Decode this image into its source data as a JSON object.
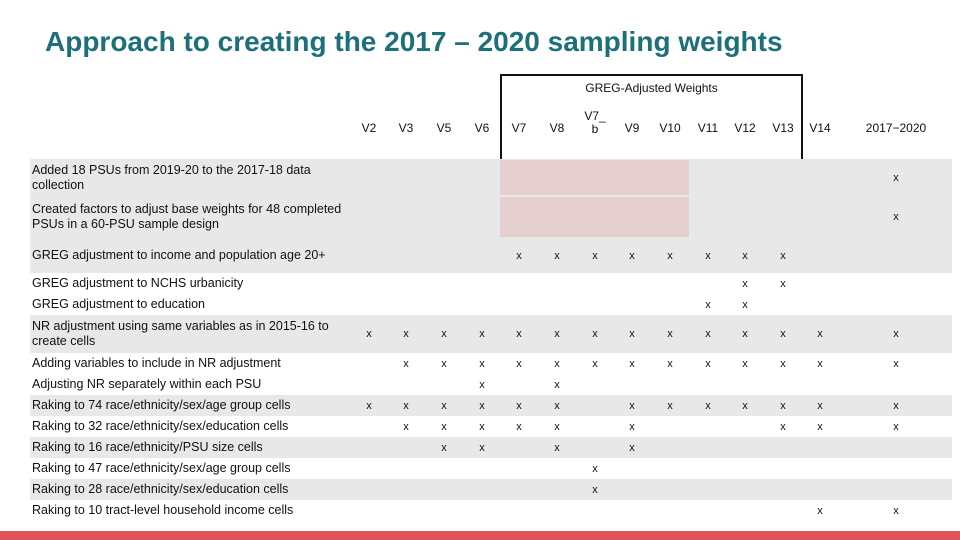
{
  "title": "Approach to creating the 2017 – 2020 sampling weights",
  "greg_header": "GREG-Adjusted Weights",
  "columns": [
    "V2",
    "V3",
    "V5",
    "V6",
    "V7",
    "V8",
    "V7_b",
    "V9",
    "V10",
    "V11",
    "V12",
    "V13",
    "V14",
    "2017−2020"
  ],
  "column_display": {
    "V7_b_line1": "V7",
    "V7_b_dash": "_",
    "V7_b_line2": "b"
  },
  "rows": [
    {
      "label": "Added 18 PSUs from 2019-20 to the 2017-18 data collection",
      "marks": [
        "",
        "",
        "",
        "",
        "",
        "",
        "",
        "",
        "",
        "",
        "",
        "",
        "",
        "x"
      ]
    },
    {
      "label": "Created factors to adjust base weights for 48 completed PSUs in a 60-PSU sample design",
      "marks": [
        "",
        "",
        "",
        "",
        "",
        "",
        "",
        "",
        "",
        "",
        "",
        "",
        "",
        "x"
      ]
    },
    {
      "label": "GREG adjustment to income and population age 20+",
      "marks": [
        "",
        "",
        "",
        "",
        "x",
        "x",
        "x",
        "x",
        "x",
        "x",
        "x",
        "x",
        "",
        ""
      ]
    },
    {
      "label": "GREG adjustment to NCHS urbanicity",
      "marks": [
        "",
        "",
        "",
        "",
        "",
        "",
        "",
        "",
        "",
        "",
        "x",
        "x",
        "",
        ""
      ]
    },
    {
      "label": "GREG adjustment to education",
      "marks": [
        "",
        "",
        "",
        "",
        "",
        "",
        "",
        "",
        "",
        "x",
        "x",
        "",
        "",
        ""
      ]
    },
    {
      "label": "NR adjustment using same variables as in 2015-16 to create cells",
      "marks": [
        "x",
        "x",
        "x",
        "x",
        "x",
        "x",
        "x",
        "x",
        "x",
        "x",
        "x",
        "x",
        "x",
        "x"
      ]
    },
    {
      "label": "Adding variables to include in NR adjustment",
      "marks": [
        "",
        "x",
        "x",
        "x",
        "x",
        "x",
        "x",
        "x",
        "x",
        "x",
        "x",
        "x",
        "x",
        "x"
      ]
    },
    {
      "label": "Adjusting NR separately within each PSU",
      "marks": [
        "",
        "",
        "",
        "x",
        "",
        "x",
        "",
        "",
        "",
        "",
        "",
        "",
        "",
        ""
      ]
    },
    {
      "label": "Raking to 74 race/ethnicity/sex/age group cells",
      "marks": [
        "x",
        "x",
        "x",
        "x",
        "x",
        "x",
        "",
        "x",
        "x",
        "x",
        "x",
        "x",
        "x",
        "x"
      ]
    },
    {
      "label": "Raking to 32 race/ethnicity/sex/education cells",
      "marks": [
        "",
        "x",
        "x",
        "x",
        "x",
        "x",
        "",
        "x",
        "",
        "",
        "",
        "x",
        "x",
        "x"
      ]
    },
    {
      "label": "Raking to 16 race/ethnicity/PSU size cells",
      "marks": [
        "",
        "",
        "x",
        "x",
        "",
        "x",
        "",
        "x",
        "",
        "",
        "",
        "",
        "",
        ""
      ]
    },
    {
      "label": "Raking to 47 race/ethnicity/sex/age group cells",
      "marks": [
        "",
        "",
        "",
        "",
        "",
        "",
        "x",
        "",
        "",
        "",
        "",
        "",
        "",
        ""
      ]
    },
    {
      "label": "Raking to 28 race/ethnicity/sex/education cells",
      "marks": [
        "",
        "",
        "",
        "",
        "",
        "",
        "x",
        "",
        "",
        "",
        "",
        "",
        "",
        ""
      ]
    },
    {
      "label": "Raking to 10 tract-level household income cells",
      "marks": [
        "",
        "",
        "",
        "",
        "",
        "",
        "",
        "",
        "",
        "",
        "",
        "",
        "x",
        "x"
      ]
    }
  ],
  "colors": {
    "title": "#1d6f7a",
    "stripe": "#e8e8e8",
    "highlight": "#e6cfcf",
    "bottom_bar": "#e05557"
  }
}
